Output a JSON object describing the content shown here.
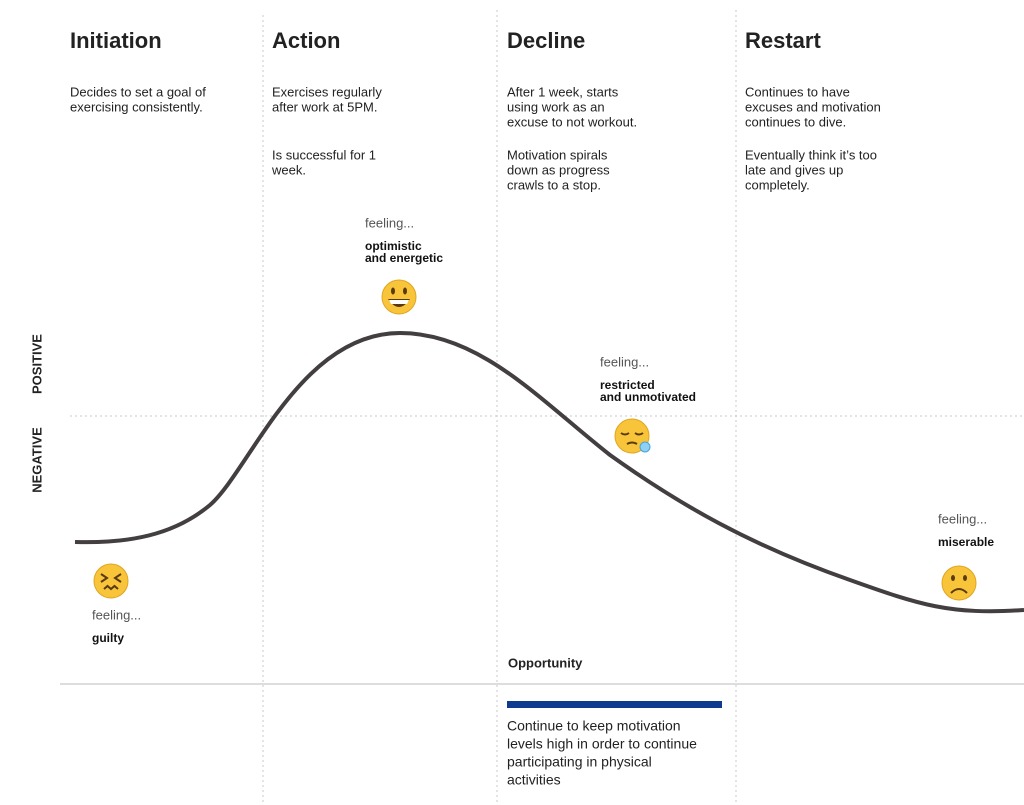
{
  "axis": {
    "positive": "POSITIVE",
    "negative": "NEGATIVE"
  },
  "stages": [
    {
      "title": "Initiation",
      "paragraphs": [
        [
          "Decides to set a goal of",
          "exercising consistently."
        ]
      ]
    },
    {
      "title": "Action",
      "paragraphs": [
        [
          "Exercises regularly",
          "after work at 5PM."
        ],
        [
          "Is successful for 1",
          "week."
        ]
      ]
    },
    {
      "title": "Decline",
      "paragraphs": [
        [
          "After 1 week, starts",
          "using work as an",
          "excuse to not workout."
        ],
        [
          "Motivation spirals",
          "down as progress",
          "crawls to a stop."
        ]
      ]
    },
    {
      "title": "Restart",
      "paragraphs": [
        [
          "Continues to have",
          "excuses and motivation",
          "continues to dive."
        ],
        [
          "Eventually think it’s too",
          "late and gives up",
          "completely."
        ]
      ]
    }
  ],
  "feelings": [
    {
      "label": "feeling...",
      "emotion": [
        "guilty"
      ]
    },
    {
      "label": "feeling...",
      "emotion": [
        "optimistic",
        "and energetic"
      ]
    },
    {
      "label": "feeling...",
      "emotion": [
        "restricted",
        "and unmotivated"
      ]
    },
    {
      "label": "feeling...",
      "emotion": [
        "miserable"
      ]
    }
  ],
  "opportunity": {
    "title": "Opportunity",
    "text": [
      "Continue to keep motivation",
      "levels high in order to continue",
      "participating in physical",
      "activities"
    ]
  }
}
